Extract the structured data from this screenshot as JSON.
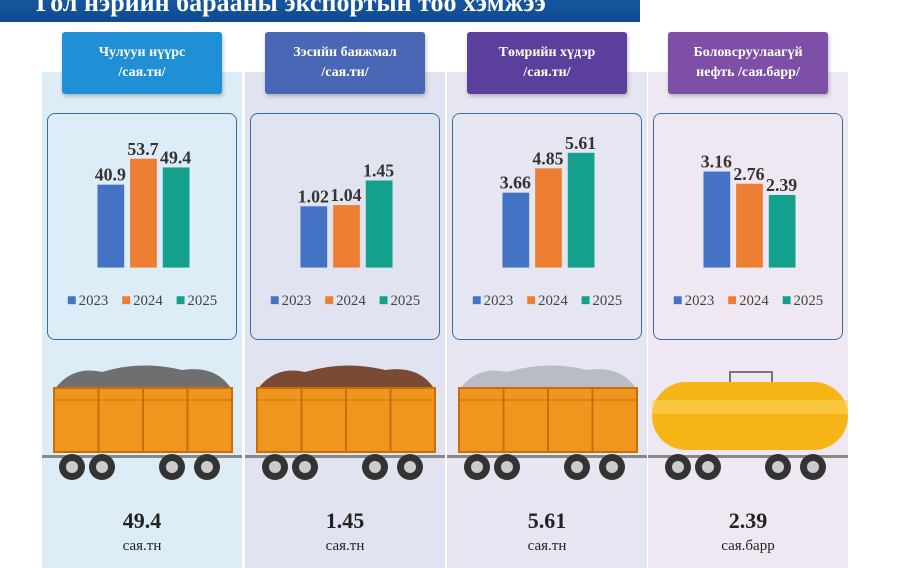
{
  "title": "Гол нэрийн барааны экспортын тоо хэмжээ",
  "colors": {
    "2023": "#4472c4",
    "2024": "#ed7d31",
    "2025": "#13a08c"
  },
  "chart_data": [
    {
      "type": "bar",
      "title": "Чулуун нүүрс\n/сая.тн/",
      "categories": [
        "2023",
        "2024",
        "2025"
      ],
      "values": [
        40.9,
        53.7,
        49.4
      ],
      "labels": [
        "40.9",
        "53.7",
        "49.4"
      ],
      "legend": [
        "2023",
        "2024",
        "2025"
      ],
      "legend_position": "bottom"
    },
    {
      "type": "bar",
      "title": "Зэсийн баяжмал\n/сая.тн/",
      "categories": [
        "2023",
        "2024",
        "2025"
      ],
      "values": [
        1.02,
        1.04,
        1.45
      ],
      "labels": [
        "1.02",
        "1.04",
        "1.45"
      ],
      "legend": [
        "2023",
        "2024",
        "2025"
      ],
      "legend_position": "bottom"
    },
    {
      "type": "bar",
      "title": "Төмрийн хүдэр\n/сая.тн/",
      "categories": [
        "2023",
        "2024",
        "2025"
      ],
      "values": [
        3.66,
        4.85,
        5.61
      ],
      "labels": [
        "3.66",
        "4.85",
        "5.61"
      ],
      "legend": [
        "2023",
        "2024",
        "2025"
      ],
      "legend_position": "bottom"
    },
    {
      "type": "bar",
      "title": "Боловсруулаагүй\nнефть /сая.барр/",
      "categories": [
        "2023",
        "2024",
        "2025"
      ],
      "values": [
        3.16,
        2.76,
        2.39
      ],
      "labels": [
        "3.16",
        "2.76",
        "2.39"
      ],
      "legend": [
        "2023",
        "2024",
        "2025"
      ],
      "legend_position": "bottom"
    }
  ],
  "summary": [
    {
      "value": "49.4",
      "unit": "сая.тн"
    },
    {
      "value": "1.45",
      "unit": "сая.тн"
    },
    {
      "value": "5.61",
      "unit": "сая.тн"
    },
    {
      "value": "2.39",
      "unit": "сая.барр"
    }
  ]
}
